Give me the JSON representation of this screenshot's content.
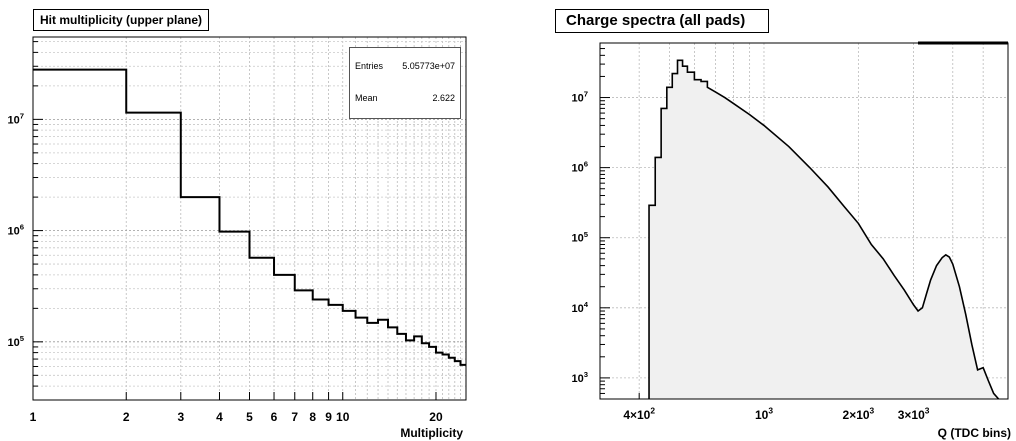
{
  "chart_data": [
    {
      "type": "histogram",
      "title": "Hit multiplicity (upper plane)",
      "xlabel": "Multiplicity",
      "ylabel": "",
      "x_scale": "log",
      "y_scale": "log",
      "xlim": [
        1,
        25
      ],
      "ylim": [
        30000,
        55000000
      ],
      "grid": true,
      "x_tick_labels": [
        "1",
        "2",
        "3",
        "4",
        "5",
        "6",
        "7",
        "8",
        "9",
        "10",
        "20"
      ],
      "y_tick_labels": [
        {
          "base": "10",
          "exp": "7",
          "value": 10000000
        },
        {
          "base": "10",
          "exp": "6",
          "value": 1000000
        },
        {
          "base": "10",
          "exp": "5",
          "value": 100000
        }
      ],
      "stats": {
        "entries_label": "Entries",
        "entries_value": "5.05773e+07",
        "mean_label": "Mean",
        "mean_value": "2.622"
      },
      "bins": [
        {
          "x": 1,
          "y": 28000000
        },
        {
          "x": 2,
          "y": 11500000
        },
        {
          "x": 3,
          "y": 2000000
        },
        {
          "x": 4,
          "y": 980000
        },
        {
          "x": 5,
          "y": 570000
        },
        {
          "x": 6,
          "y": 400000
        },
        {
          "x": 7,
          "y": 290000
        },
        {
          "x": 8,
          "y": 240000
        },
        {
          "x": 9,
          "y": 215000
        },
        {
          "x": 10,
          "y": 190000
        },
        {
          "x": 11,
          "y": 165000
        },
        {
          "x": 12,
          "y": 148000
        },
        {
          "x": 13,
          "y": 158000
        },
        {
          "x": 14,
          "y": 135000
        },
        {
          "x": 15,
          "y": 118000
        },
        {
          "x": 16,
          "y": 103000
        },
        {
          "x": 17,
          "y": 112000
        },
        {
          "x": 18,
          "y": 97000
        },
        {
          "x": 19,
          "y": 90000
        },
        {
          "x": 20,
          "y": 80000
        },
        {
          "x": 21,
          "y": 77000
        },
        {
          "x": 22,
          "y": 72000
        },
        {
          "x": 23,
          "y": 67000
        },
        {
          "x": 24,
          "y": 62000
        }
      ]
    },
    {
      "type": "area",
      "title": "Charge spectra (all pads)",
      "xlabel": "Q (TDC bins)",
      "ylabel": "",
      "x_scale": "log",
      "y_scale": "log",
      "xlim": [
        300,
        6000
      ],
      "ylim": [
        500,
        60000000
      ],
      "grid": true,
      "fill_color": "#f0f0f0",
      "x_tick_labels": [
        {
          "base": "4×10",
          "exp": "2",
          "value": 400
        },
        {
          "base": "10",
          "exp": "3",
          "value": 1000
        },
        {
          "base": "2×10",
          "exp": "3",
          "value": 2000
        },
        {
          "base": "3×10",
          "exp": "3",
          "value": 3000
        }
      ],
      "y_tick_labels": [
        {
          "base": "10",
          "exp": "7",
          "value": 10000000
        },
        {
          "base": "10",
          "exp": "6",
          "value": 1000000
        },
        {
          "base": "10",
          "exp": "5",
          "value": 100000
        },
        {
          "base": "10",
          "exp": "4",
          "value": 10000
        },
        {
          "base": "10",
          "exp": "3",
          "value": 1000
        }
      ],
      "points": [
        [
          430,
          500
        ],
        [
          430,
          290000
        ],
        [
          450,
          290000
        ],
        [
          450,
          1400000
        ],
        [
          470,
          1400000
        ],
        [
          470,
          7000000
        ],
        [
          490,
          7000000
        ],
        [
          490,
          14000000
        ],
        [
          510,
          14000000
        ],
        [
          510,
          22000000
        ],
        [
          530,
          22000000
        ],
        [
          530,
          34000000
        ],
        [
          550,
          34000000
        ],
        [
          550,
          28000000
        ],
        [
          570,
          28000000
        ],
        [
          570,
          23000000
        ],
        [
          600,
          23000000
        ],
        [
          600,
          18000000
        ],
        [
          630,
          18000000
        ],
        [
          630,
          17000000
        ],
        [
          660,
          17000000
        ],
        [
          660,
          14000000
        ],
        [
          700,
          12000000
        ],
        [
          750,
          10000000
        ],
        [
          800,
          8200000
        ],
        [
          900,
          5700000
        ],
        [
          1000,
          4000000
        ],
        [
          1200,
          2000000
        ],
        [
          1400,
          1000000
        ],
        [
          1600,
          530000
        ],
        [
          1800,
          280000
        ],
        [
          2000,
          160000
        ],
        [
          2200,
          80000
        ],
        [
          2400,
          50000
        ],
        [
          2600,
          29000
        ],
        [
          2800,
          18000
        ],
        [
          3000,
          11000
        ],
        [
          3100,
          9000
        ],
        [
          3200,
          10000
        ],
        [
          3300,
          16000
        ],
        [
          3400,
          25000
        ],
        [
          3550,
          40000
        ],
        [
          3700,
          52000
        ],
        [
          3800,
          57000
        ],
        [
          3900,
          53000
        ],
        [
          4000,
          42000
        ],
        [
          4200,
          20000
        ],
        [
          4400,
          8000
        ],
        [
          4600,
          3000
        ],
        [
          4800,
          1300
        ],
        [
          5000,
          1400
        ],
        [
          5200,
          900
        ],
        [
          5400,
          600
        ],
        [
          5600,
          500
        ]
      ]
    }
  ]
}
